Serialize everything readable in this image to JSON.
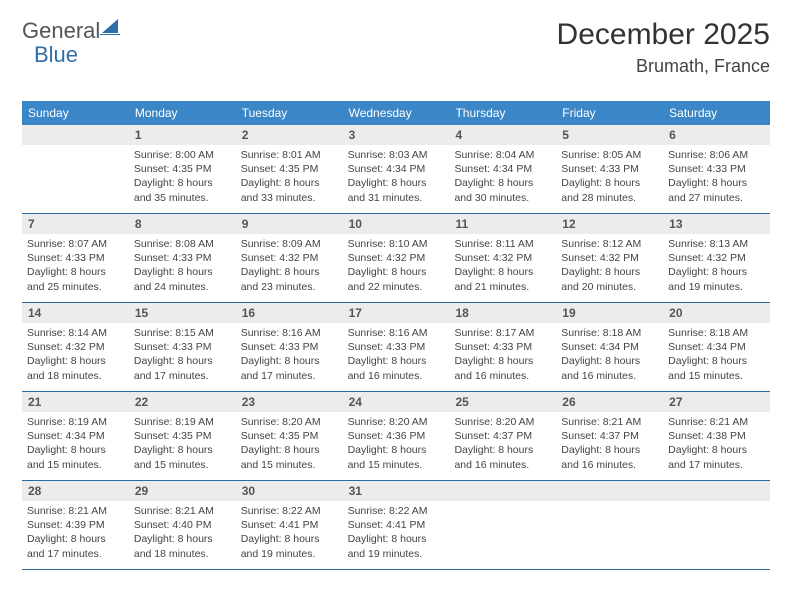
{
  "brand": {
    "part1": "General",
    "part2": "Blue"
  },
  "title": "December 2025",
  "location": "Brumath, France",
  "weekday_labels": [
    "Sunday",
    "Monday",
    "Tuesday",
    "Wednesday",
    "Thursday",
    "Friday",
    "Saturday"
  ],
  "styling": {
    "header_bg": "#3b86c6",
    "header_text": "#ffffff",
    "daynum_bg": "#ececec",
    "daynum_color": "#555555",
    "info_color": "#444444",
    "border_color": "#2a6aa5",
    "page_bg": "#ffffff",
    "title_color": "#333333",
    "logo_gray": "#555555",
    "logo_blue": "#2f6fa8",
    "title_fontsize": 30,
    "location_fontsize": 18,
    "header_fontsize": 12,
    "daynum_fontsize": 12,
    "info_fontsize": 10.5,
    "columns": 7,
    "rows": 5
  },
  "weeks": [
    [
      {
        "n": "",
        "sunrise": "",
        "sunset": "",
        "daylight": ""
      },
      {
        "n": "1",
        "sunrise": "Sunrise: 8:00 AM",
        "sunset": "Sunset: 4:35 PM",
        "daylight": "Daylight: 8 hours and 35 minutes."
      },
      {
        "n": "2",
        "sunrise": "Sunrise: 8:01 AM",
        "sunset": "Sunset: 4:35 PM",
        "daylight": "Daylight: 8 hours and 33 minutes."
      },
      {
        "n": "3",
        "sunrise": "Sunrise: 8:03 AM",
        "sunset": "Sunset: 4:34 PM",
        "daylight": "Daylight: 8 hours and 31 minutes."
      },
      {
        "n": "4",
        "sunrise": "Sunrise: 8:04 AM",
        "sunset": "Sunset: 4:34 PM",
        "daylight": "Daylight: 8 hours and 30 minutes."
      },
      {
        "n": "5",
        "sunrise": "Sunrise: 8:05 AM",
        "sunset": "Sunset: 4:33 PM",
        "daylight": "Daylight: 8 hours and 28 minutes."
      },
      {
        "n": "6",
        "sunrise": "Sunrise: 8:06 AM",
        "sunset": "Sunset: 4:33 PM",
        "daylight": "Daylight: 8 hours and 27 minutes."
      }
    ],
    [
      {
        "n": "7",
        "sunrise": "Sunrise: 8:07 AM",
        "sunset": "Sunset: 4:33 PM",
        "daylight": "Daylight: 8 hours and 25 minutes."
      },
      {
        "n": "8",
        "sunrise": "Sunrise: 8:08 AM",
        "sunset": "Sunset: 4:33 PM",
        "daylight": "Daylight: 8 hours and 24 minutes."
      },
      {
        "n": "9",
        "sunrise": "Sunrise: 8:09 AM",
        "sunset": "Sunset: 4:32 PM",
        "daylight": "Daylight: 8 hours and 23 minutes."
      },
      {
        "n": "10",
        "sunrise": "Sunrise: 8:10 AM",
        "sunset": "Sunset: 4:32 PM",
        "daylight": "Daylight: 8 hours and 22 minutes."
      },
      {
        "n": "11",
        "sunrise": "Sunrise: 8:11 AM",
        "sunset": "Sunset: 4:32 PM",
        "daylight": "Daylight: 8 hours and 21 minutes."
      },
      {
        "n": "12",
        "sunrise": "Sunrise: 8:12 AM",
        "sunset": "Sunset: 4:32 PM",
        "daylight": "Daylight: 8 hours and 20 minutes."
      },
      {
        "n": "13",
        "sunrise": "Sunrise: 8:13 AM",
        "sunset": "Sunset: 4:32 PM",
        "daylight": "Daylight: 8 hours and 19 minutes."
      }
    ],
    [
      {
        "n": "14",
        "sunrise": "Sunrise: 8:14 AM",
        "sunset": "Sunset: 4:32 PM",
        "daylight": "Daylight: 8 hours and 18 minutes."
      },
      {
        "n": "15",
        "sunrise": "Sunrise: 8:15 AM",
        "sunset": "Sunset: 4:33 PM",
        "daylight": "Daylight: 8 hours and 17 minutes."
      },
      {
        "n": "16",
        "sunrise": "Sunrise: 8:16 AM",
        "sunset": "Sunset: 4:33 PM",
        "daylight": "Daylight: 8 hours and 17 minutes."
      },
      {
        "n": "17",
        "sunrise": "Sunrise: 8:16 AM",
        "sunset": "Sunset: 4:33 PM",
        "daylight": "Daylight: 8 hours and 16 minutes."
      },
      {
        "n": "18",
        "sunrise": "Sunrise: 8:17 AM",
        "sunset": "Sunset: 4:33 PM",
        "daylight": "Daylight: 8 hours and 16 minutes."
      },
      {
        "n": "19",
        "sunrise": "Sunrise: 8:18 AM",
        "sunset": "Sunset: 4:34 PM",
        "daylight": "Daylight: 8 hours and 16 minutes."
      },
      {
        "n": "20",
        "sunrise": "Sunrise: 8:18 AM",
        "sunset": "Sunset: 4:34 PM",
        "daylight": "Daylight: 8 hours and 15 minutes."
      }
    ],
    [
      {
        "n": "21",
        "sunrise": "Sunrise: 8:19 AM",
        "sunset": "Sunset: 4:34 PM",
        "daylight": "Daylight: 8 hours and 15 minutes."
      },
      {
        "n": "22",
        "sunrise": "Sunrise: 8:19 AM",
        "sunset": "Sunset: 4:35 PM",
        "daylight": "Daylight: 8 hours and 15 minutes."
      },
      {
        "n": "23",
        "sunrise": "Sunrise: 8:20 AM",
        "sunset": "Sunset: 4:35 PM",
        "daylight": "Daylight: 8 hours and 15 minutes."
      },
      {
        "n": "24",
        "sunrise": "Sunrise: 8:20 AM",
        "sunset": "Sunset: 4:36 PM",
        "daylight": "Daylight: 8 hours and 15 minutes."
      },
      {
        "n": "25",
        "sunrise": "Sunrise: 8:20 AM",
        "sunset": "Sunset: 4:37 PM",
        "daylight": "Daylight: 8 hours and 16 minutes."
      },
      {
        "n": "26",
        "sunrise": "Sunrise: 8:21 AM",
        "sunset": "Sunset: 4:37 PM",
        "daylight": "Daylight: 8 hours and 16 minutes."
      },
      {
        "n": "27",
        "sunrise": "Sunrise: 8:21 AM",
        "sunset": "Sunset: 4:38 PM",
        "daylight": "Daylight: 8 hours and 17 minutes."
      }
    ],
    [
      {
        "n": "28",
        "sunrise": "Sunrise: 8:21 AM",
        "sunset": "Sunset: 4:39 PM",
        "daylight": "Daylight: 8 hours and 17 minutes."
      },
      {
        "n": "29",
        "sunrise": "Sunrise: 8:21 AM",
        "sunset": "Sunset: 4:40 PM",
        "daylight": "Daylight: 8 hours and 18 minutes."
      },
      {
        "n": "30",
        "sunrise": "Sunrise: 8:22 AM",
        "sunset": "Sunset: 4:41 PM",
        "daylight": "Daylight: 8 hours and 19 minutes."
      },
      {
        "n": "31",
        "sunrise": "Sunrise: 8:22 AM",
        "sunset": "Sunset: 4:41 PM",
        "daylight": "Daylight: 8 hours and 19 minutes."
      },
      {
        "n": "",
        "sunrise": "",
        "sunset": "",
        "daylight": ""
      },
      {
        "n": "",
        "sunrise": "",
        "sunset": "",
        "daylight": ""
      },
      {
        "n": "",
        "sunrise": "",
        "sunset": "",
        "daylight": ""
      }
    ]
  ]
}
